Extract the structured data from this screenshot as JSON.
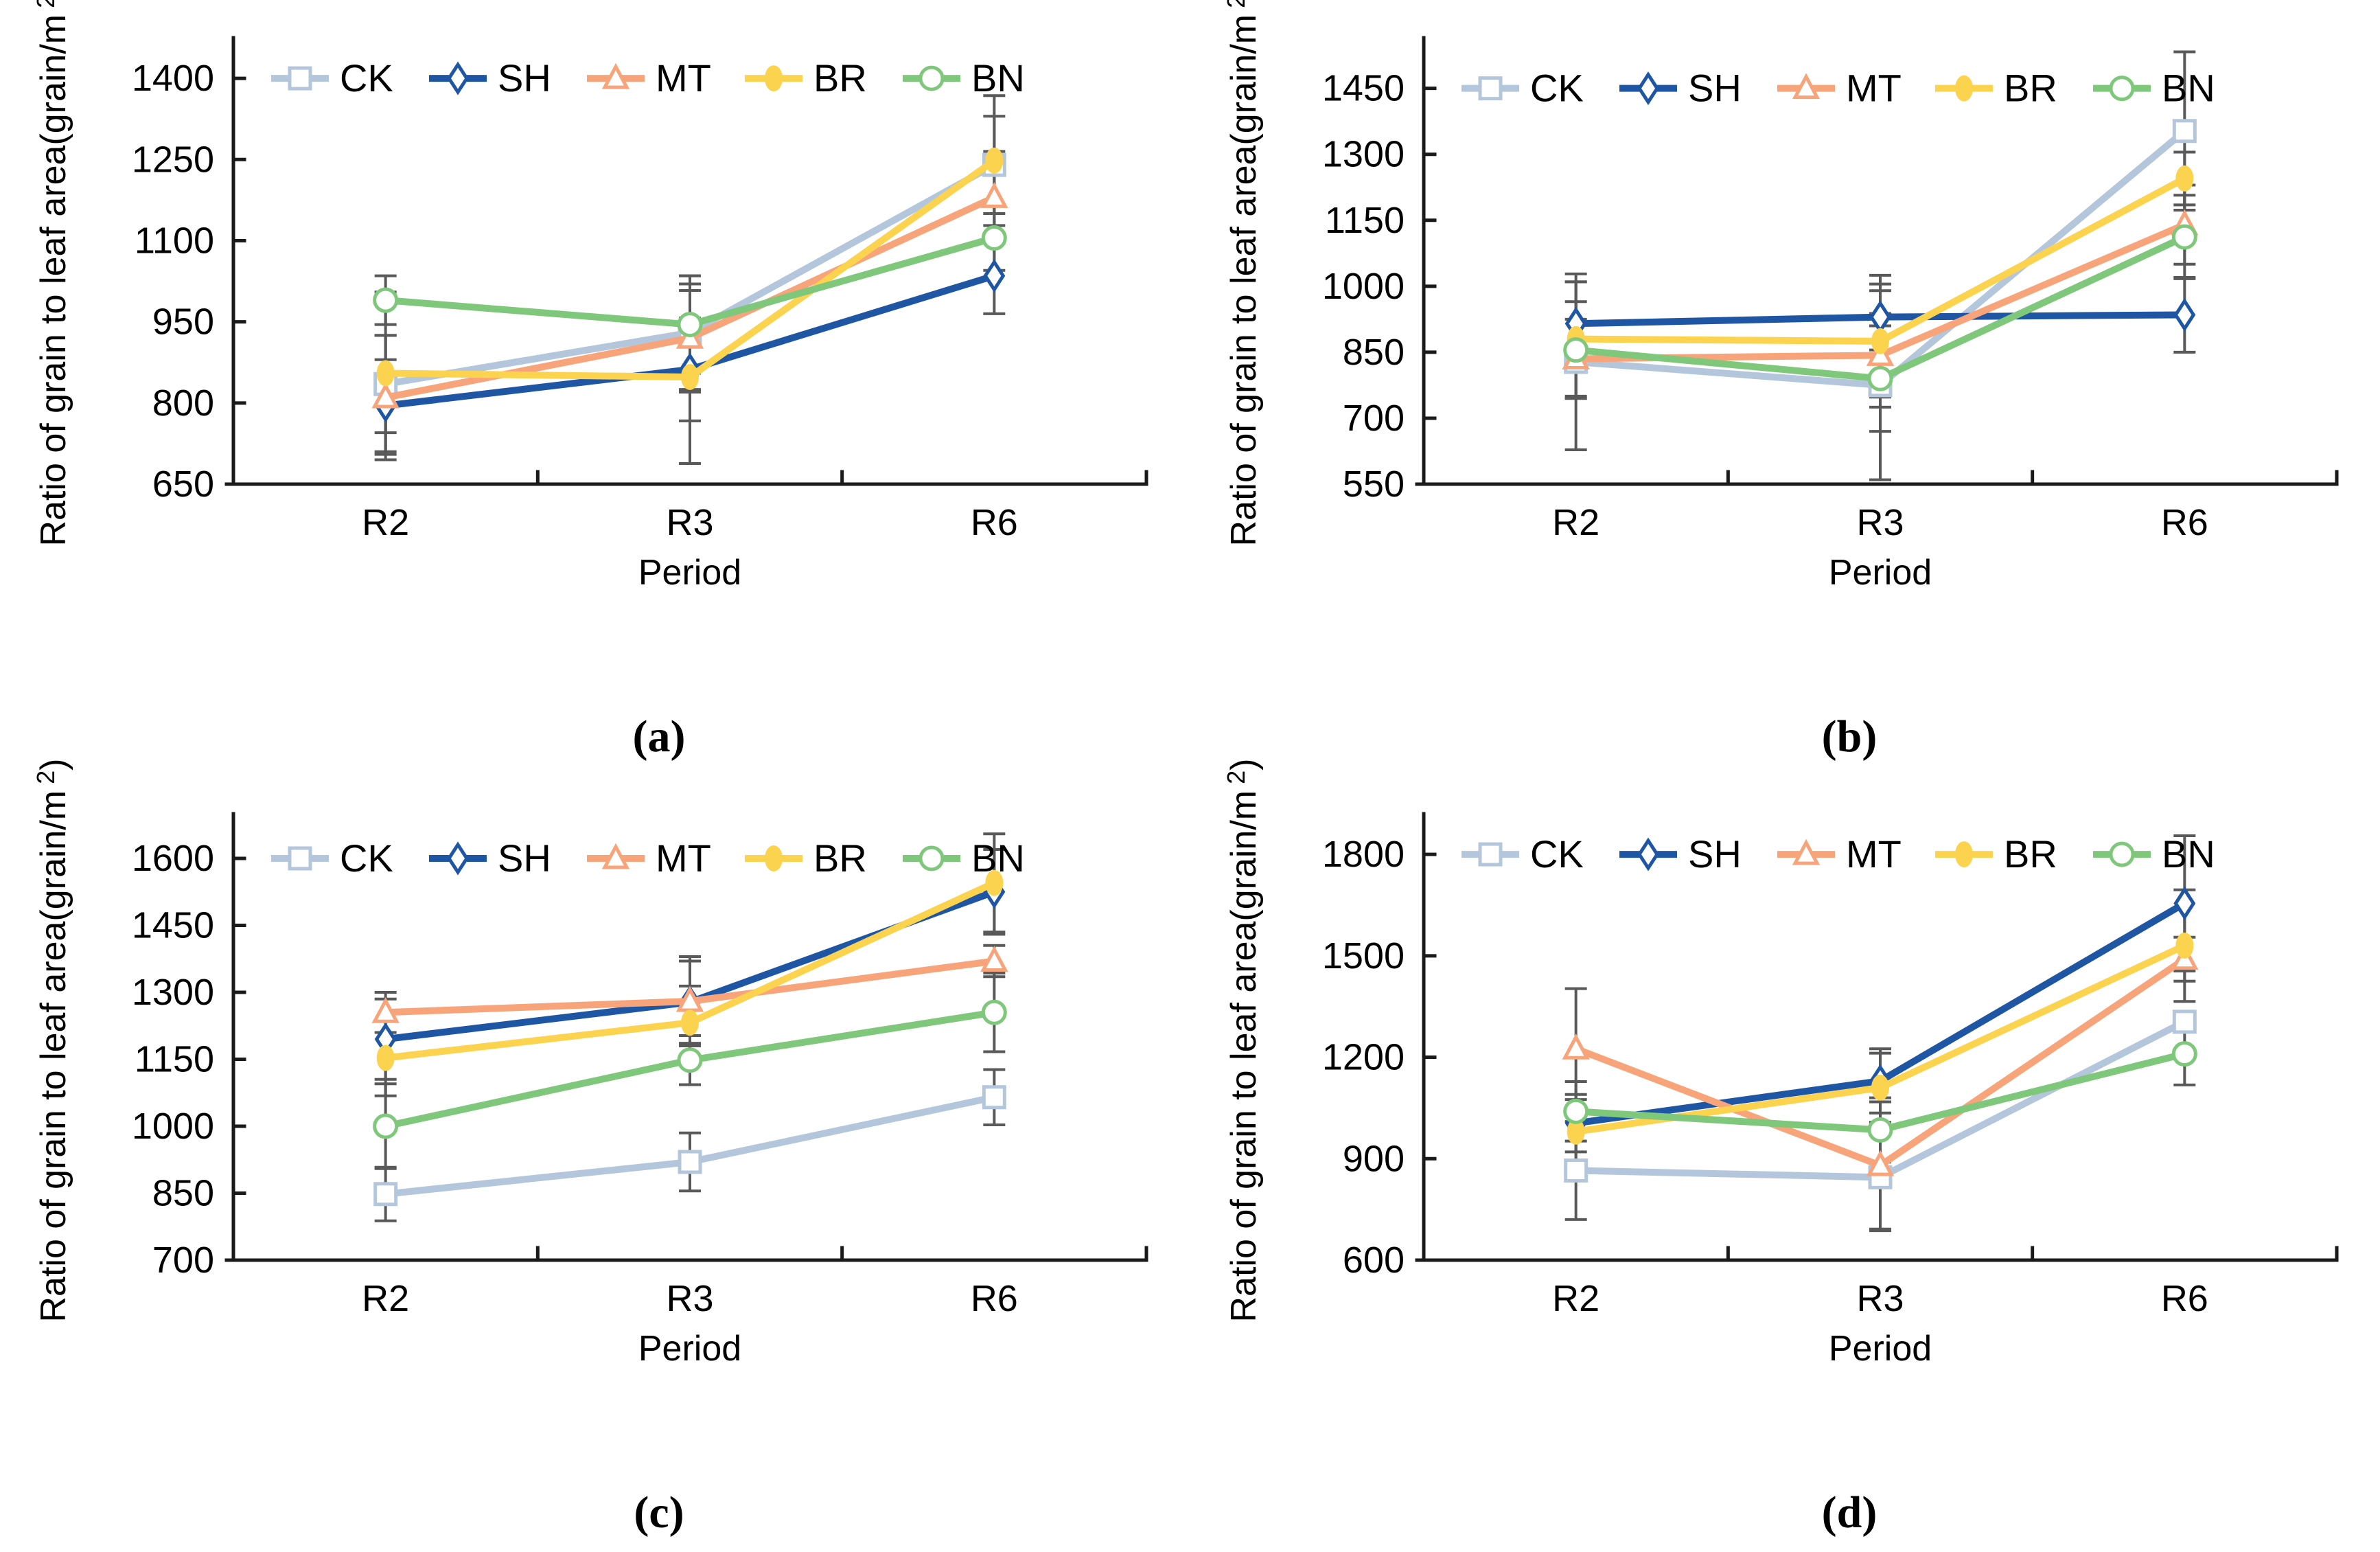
{
  "figure_title": "",
  "chart_data": [
    {
      "type": "line",
      "panel_label": "(a)",
      "categories": [
        "R2",
        "R3",
        "R6"
      ],
      "xlabel": "Period",
      "ylabel_prefix": "Ratio of grain to leaf area(grain/m",
      "ylabel_sup": "2",
      "ylabel_suffix": ")",
      "ylim": [
        650,
        1475
      ],
      "yticks": [
        650,
        800,
        950,
        1100,
        1250,
        1400
      ],
      "grid": false,
      "legend_position": "top",
      "error_bar_color": "#595959",
      "series": [
        {
          "name": "CK",
          "color": "#b3c6db",
          "marker": "square",
          "values": [
            835,
            930,
            1240
          ],
          "errors": [
            90,
            105,
            90
          ]
        },
        {
          "name": "SH",
          "color": "#1f56a4",
          "marker": "diamond",
          "values": [
            795,
            862,
            1035
          ],
          "errors": [
            85,
            95,
            70
          ]
        },
        {
          "name": "MT",
          "color": "#f8a47b",
          "marker": "triangle",
          "values": [
            810,
            920,
            1180
          ],
          "errors": [
            115,
            100,
            85
          ]
        },
        {
          "name": "BR",
          "color": "#fcd34f",
          "marker": "ellipse-filled",
          "values": [
            855,
            848,
            1248
          ],
          "errors": [
            150,
            160,
            120
          ]
        },
        {
          "name": "BN",
          "color": "#7fc87b",
          "marker": "circle",
          "values": [
            990,
            945,
            1105
          ],
          "errors": [
            45,
            90,
            60
          ]
        }
      ]
    },
    {
      "type": "line",
      "panel_label": "(b)",
      "categories": [
        "R2",
        "R3",
        "R6"
      ],
      "xlabel": "Period",
      "ylabel_prefix": "Ratio of grain to leaf area(grain/m",
      "ylabel_sup": "2",
      "ylabel_suffix": ")",
      "ylim": [
        550,
        1565
      ],
      "yticks": [
        550,
        700,
        850,
        1000,
        1150,
        1300,
        1450
      ],
      "grid": false,
      "legend_position": "top",
      "error_bar_color": "#595959",
      "series": [
        {
          "name": "CK",
          "color": "#b3c6db",
          "marker": "square",
          "values": [
            828,
            775,
            1353
          ],
          "errors": [
            200,
            215,
            180
          ]
        },
        {
          "name": "SH",
          "color": "#1f56a4",
          "marker": "diamond",
          "values": [
            915,
            930,
            935
          ],
          "errors": [
            95,
            75,
            85
          ]
        },
        {
          "name": "MT",
          "color": "#f8a47b",
          "marker": "triangle",
          "values": [
            835,
            843,
            1140
          ],
          "errors": [
            90,
            95,
            90
          ]
        },
        {
          "name": "BR",
          "color": "#fcd34f",
          "marker": "ellipse-filled",
          "values": [
            880,
            875,
            1245
          ],
          "errors": [
            130,
            150,
            60
          ]
        },
        {
          "name": "BN",
          "color": "#7fc87b",
          "marker": "circle",
          "values": [
            855,
            790,
            1112
          ],
          "errors": [
            110,
            120,
            95
          ]
        }
      ]
    },
    {
      "type": "line",
      "panel_label": "(c)",
      "categories": [
        "R2",
        "R3",
        "R6"
      ],
      "xlabel": "Period",
      "ylabel_prefix": "Ratio of grain to leaf area(grain/m",
      "ylabel_sup": "2",
      "ylabel_suffix": ")",
      "ylim": [
        700,
        1700
      ],
      "yticks": [
        700,
        850,
        1000,
        1150,
        1300,
        1450,
        1600
      ],
      "grid": false,
      "legend_position": "top",
      "error_bar_color": "#595959",
      "series": [
        {
          "name": "CK",
          "color": "#b3c6db",
          "marker": "square",
          "values": [
            848,
            920,
            1065
          ],
          "errors": [
            60,
            65,
            62
          ]
        },
        {
          "name": "SH",
          "color": "#1f56a4",
          "marker": "diamond",
          "values": [
            1195,
            1278,
            1525
          ],
          "errors": [
            90,
            92,
            95
          ]
        },
        {
          "name": "MT",
          "color": "#f8a47b",
          "marker": "triangle",
          "values": [
            1255,
            1280,
            1370
          ],
          "errors": [
            45,
            100,
            35
          ]
        },
        {
          "name": "BR",
          "color": "#fcd34f",
          "marker": "ellipse-filled",
          "values": [
            1153,
            1232,
            1545
          ],
          "errors": [
            85,
            82,
            110
          ]
        },
        {
          "name": "BN",
          "color": "#7fc87b",
          "marker": "circle",
          "values": [
            1000,
            1148,
            1255
          ],
          "errors": [
            95,
            55,
            88
          ]
        }
      ]
    },
    {
      "type": "line",
      "panel_label": "(d)",
      "categories": [
        "R2",
        "R3",
        "R6"
      ],
      "xlabel": "Period",
      "ylabel_prefix": "Ratio of grain to leaf area(grain/m",
      "ylabel_sup": "2",
      "ylabel_suffix": ")",
      "ylim": [
        600,
        1920
      ],
      "yticks": [
        600,
        900,
        1200,
        1500,
        1800
      ],
      "grid": false,
      "legend_position": "top",
      "error_bar_color": "#595959",
      "series": [
        {
          "name": "CK",
          "color": "#b3c6db",
          "marker": "square",
          "values": [
            865,
            845,
            1305
          ],
          "errors": [
            145,
            158,
            30
          ]
        },
        {
          "name": "SH",
          "color": "#1f56a4",
          "marker": "diamond",
          "values": [
            1005,
            1130,
            1655
          ],
          "errors": [
            85,
            95,
            200
          ]
        },
        {
          "name": "MT",
          "color": "#f8a47b",
          "marker": "triangle",
          "values": [
            1225,
            880,
            1490
          ],
          "errors": [
            178,
            188,
            65
          ]
        },
        {
          "name": "BR",
          "color": "#fcd34f",
          "marker": "ellipse-filled",
          "values": [
            980,
            1110,
            1530
          ],
          "errors": [
            95,
            102,
            165
          ]
        },
        {
          "name": "BN",
          "color": "#7fc87b",
          "marker": "circle",
          "values": [
            1040,
            985,
            1210
          ],
          "errors": [
            88,
            95,
            92
          ]
        }
      ]
    }
  ]
}
